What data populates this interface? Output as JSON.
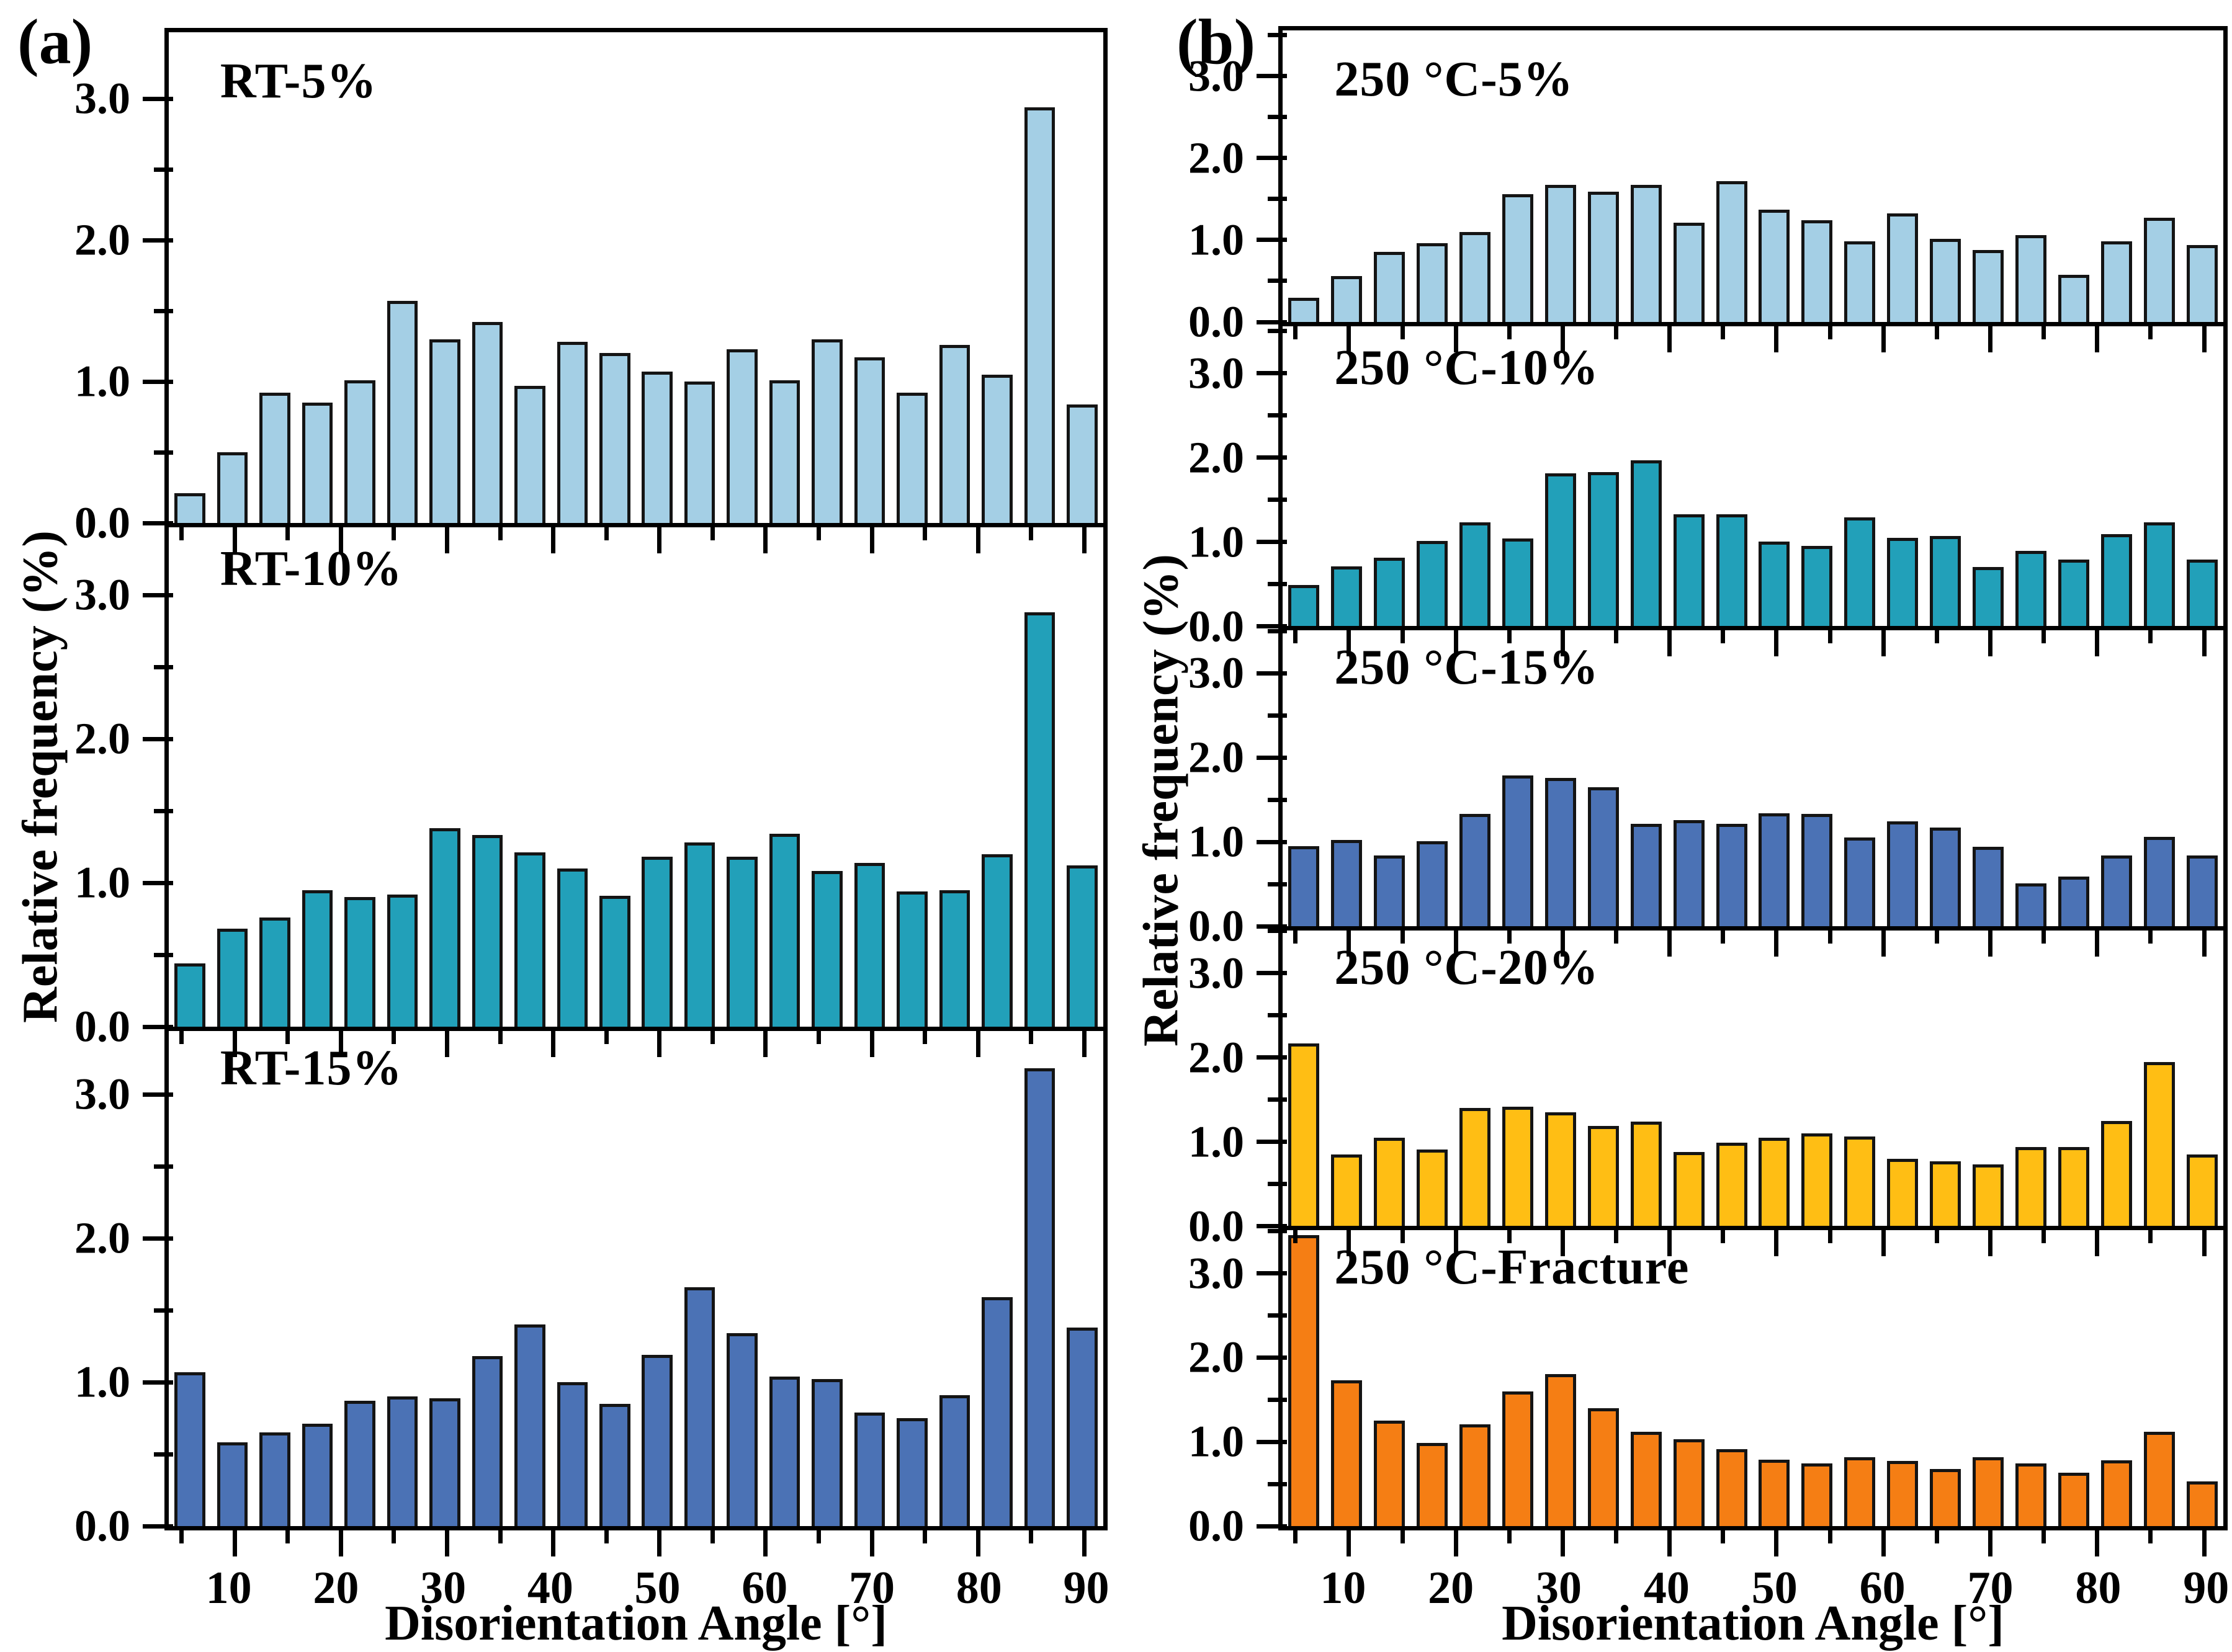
{
  "figure": {
    "label_a": "(a)",
    "label_b": "(b)"
  },
  "chart_data": {
    "type": "bar",
    "xlabel": "Disorientation Angle [°]",
    "ylabel": "Relative frequency (%)",
    "x_range": [
      4,
      92
    ],
    "x_bins_deg": [
      6,
      10,
      14,
      18,
      22,
      26,
      30,
      34,
      38,
      42,
      46,
      50,
      54,
      58,
      62,
      66,
      70,
      74,
      78,
      82,
      86,
      90
    ],
    "x_major_ticks": [
      10,
      20,
      30,
      40,
      50,
      60,
      70,
      80,
      90
    ],
    "x_major_tick_labels": [
      "10",
      "20",
      "30",
      "40",
      "50",
      "60",
      "70",
      "80",
      "90"
    ],
    "x_minor_ticks": [
      5,
      15,
      25,
      35,
      45,
      55,
      65,
      75,
      85
    ],
    "y_major_ticks": [
      0,
      1,
      2,
      3
    ],
    "y_tick_labels": [
      "0.0",
      "1.0",
      "2.0",
      "3.0"
    ],
    "y_minor_ticks": [
      0.5,
      1.5,
      2.5,
      3.5
    ],
    "grid": false,
    "legend": "none",
    "columns": [
      {
        "label": "(a)",
        "ylim": 3.47,
        "panels": [
          {
            "title": "RT-5%",
            "color": "#A4CFE5",
            "values": [
              0.21,
              0.5,
              0.92,
              0.85,
              1.01,
              1.57,
              1.3,
              1.42,
              0.97,
              1.28,
              1.2,
              1.07,
              1.0,
              1.23,
              1.01,
              1.3,
              1.17,
              0.92,
              1.26,
              1.05,
              2.94,
              0.84
            ]
          },
          {
            "title": "RT-10%",
            "color": "#22A0B9",
            "values": [
              0.44,
              0.68,
              0.76,
              0.95,
              0.9,
              0.92,
              1.38,
              1.33,
              1.21,
              1.1,
              0.91,
              1.18,
              1.28,
              1.18,
              1.34,
              1.08,
              1.14,
              0.94,
              0.95,
              1.2,
              2.88,
              1.12
            ]
          },
          {
            "title": "RT-15%",
            "color": "#4B72B5",
            "values": [
              1.07,
              0.58,
              0.65,
              0.71,
              0.87,
              0.9,
              0.89,
              1.18,
              1.4,
              1.0,
              0.85,
              1.19,
              1.66,
              1.34,
              1.04,
              1.02,
              0.79,
              0.75,
              0.91,
              1.59,
              3.18,
              1.38
            ]
          }
        ]
      },
      {
        "label": "(b)",
        "ylim": 3.56,
        "panels": [
          {
            "title": "250 °C-5%",
            "color": "#A4CFE5",
            "values": [
              0.29,
              0.56,
              0.85,
              0.96,
              1.1,
              1.56,
              1.67,
              1.59,
              1.67,
              1.21,
              1.72,
              1.37,
              1.24,
              0.98,
              1.32,
              1.01,
              0.88,
              1.06,
              0.57,
              0.98,
              1.27,
              0.94
            ]
          },
          {
            "title": "250 °C-10%",
            "color": "#22A0B9",
            "values": [
              0.49,
              0.71,
              0.81,
              1.01,
              1.23,
              1.04,
              1.81,
              1.83,
              1.97,
              1.33,
              1.33,
              1.0,
              0.95,
              1.29,
              1.05,
              1.07,
              0.7,
              0.89,
              0.79,
              1.09,
              1.23,
              0.79
            ]
          },
          {
            "title": "250 °C-15%",
            "color": "#4B72B5",
            "values": [
              0.95,
              1.02,
              0.84,
              1.01,
              1.33,
              1.79,
              1.76,
              1.65,
              1.21,
              1.26,
              1.21,
              1.34,
              1.33,
              1.05,
              1.24,
              1.17,
              0.94,
              0.51,
              0.59,
              0.84,
              1.06,
              0.84
            ]
          },
          {
            "title": "250 °C-20%",
            "color": "#FFBE14",
            "values": [
              2.17,
              0.85,
              1.05,
              0.91,
              1.4,
              1.42,
              1.35,
              1.19,
              1.24,
              0.88,
              0.99,
              1.05,
              1.1,
              1.06,
              0.8,
              0.77,
              0.73,
              0.94,
              0.94,
              1.25,
              1.95,
              0.85
            ]
          },
          {
            "title": "250 °C-Fracture",
            "color": "#F57E14",
            "values": [
              3.45,
              1.73,
              1.25,
              0.99,
              1.21,
              1.6,
              1.8,
              1.4,
              1.12,
              1.03,
              0.91,
              0.79,
              0.74,
              0.82,
              0.77,
              0.68,
              0.82,
              0.74,
              0.63,
              0.78,
              1.12,
              0.53
            ]
          }
        ]
      }
    ]
  }
}
